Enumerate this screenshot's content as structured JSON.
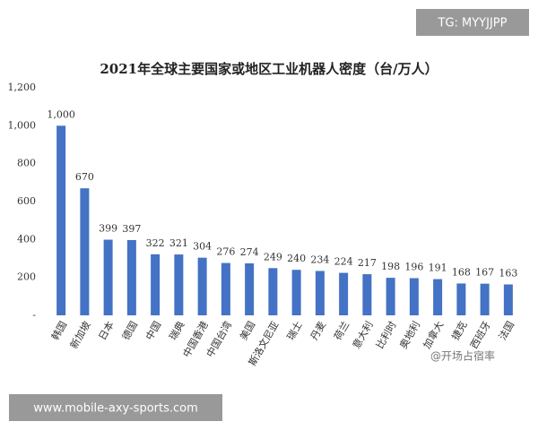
{
  "chart_data": {
    "type": "bar",
    "title": "2021年全球主要国家或地区工业机器人密度（台/万人）",
    "categories": [
      "韩国",
      "新加坡",
      "日本",
      "德国",
      "中国",
      "瑞典",
      "中国香港",
      "中国台湾",
      "美国",
      "斯洛文尼亚",
      "瑞士",
      "丹麦",
      "荷兰",
      "意大利",
      "比利时",
      "奥地利",
      "加拿大",
      "捷克",
      "西班牙",
      "法国"
    ],
    "values": [
      1000,
      670,
      399,
      397,
      322,
      321,
      304,
      276,
      274,
      249,
      240,
      234,
      224,
      217,
      198,
      196,
      191,
      168,
      167,
      163
    ],
    "value_labels": [
      "1,000",
      "670",
      "399",
      "397",
      "322",
      "321",
      "304",
      "276",
      "274",
      "249",
      "240",
      "234",
      "224",
      "217",
      "198",
      "196",
      "191",
      "168",
      "167",
      "163"
    ],
    "color": "#4472c4",
    "ylim": [
      0,
      1200
    ],
    "yticks": [
      {
        "value": 0,
        "label": "-"
      },
      200,
      400,
      600,
      800,
      {
        "value": 1000,
        "label": "1,000"
      },
      {
        "value": 1200,
        "label": "1,200"
      }
    ],
    "grid": false
  },
  "overlays": {
    "tag": "TG: MYYJJPP",
    "url": "www.mobile-axy-sports.com",
    "watermark": "@开场占宿率"
  }
}
